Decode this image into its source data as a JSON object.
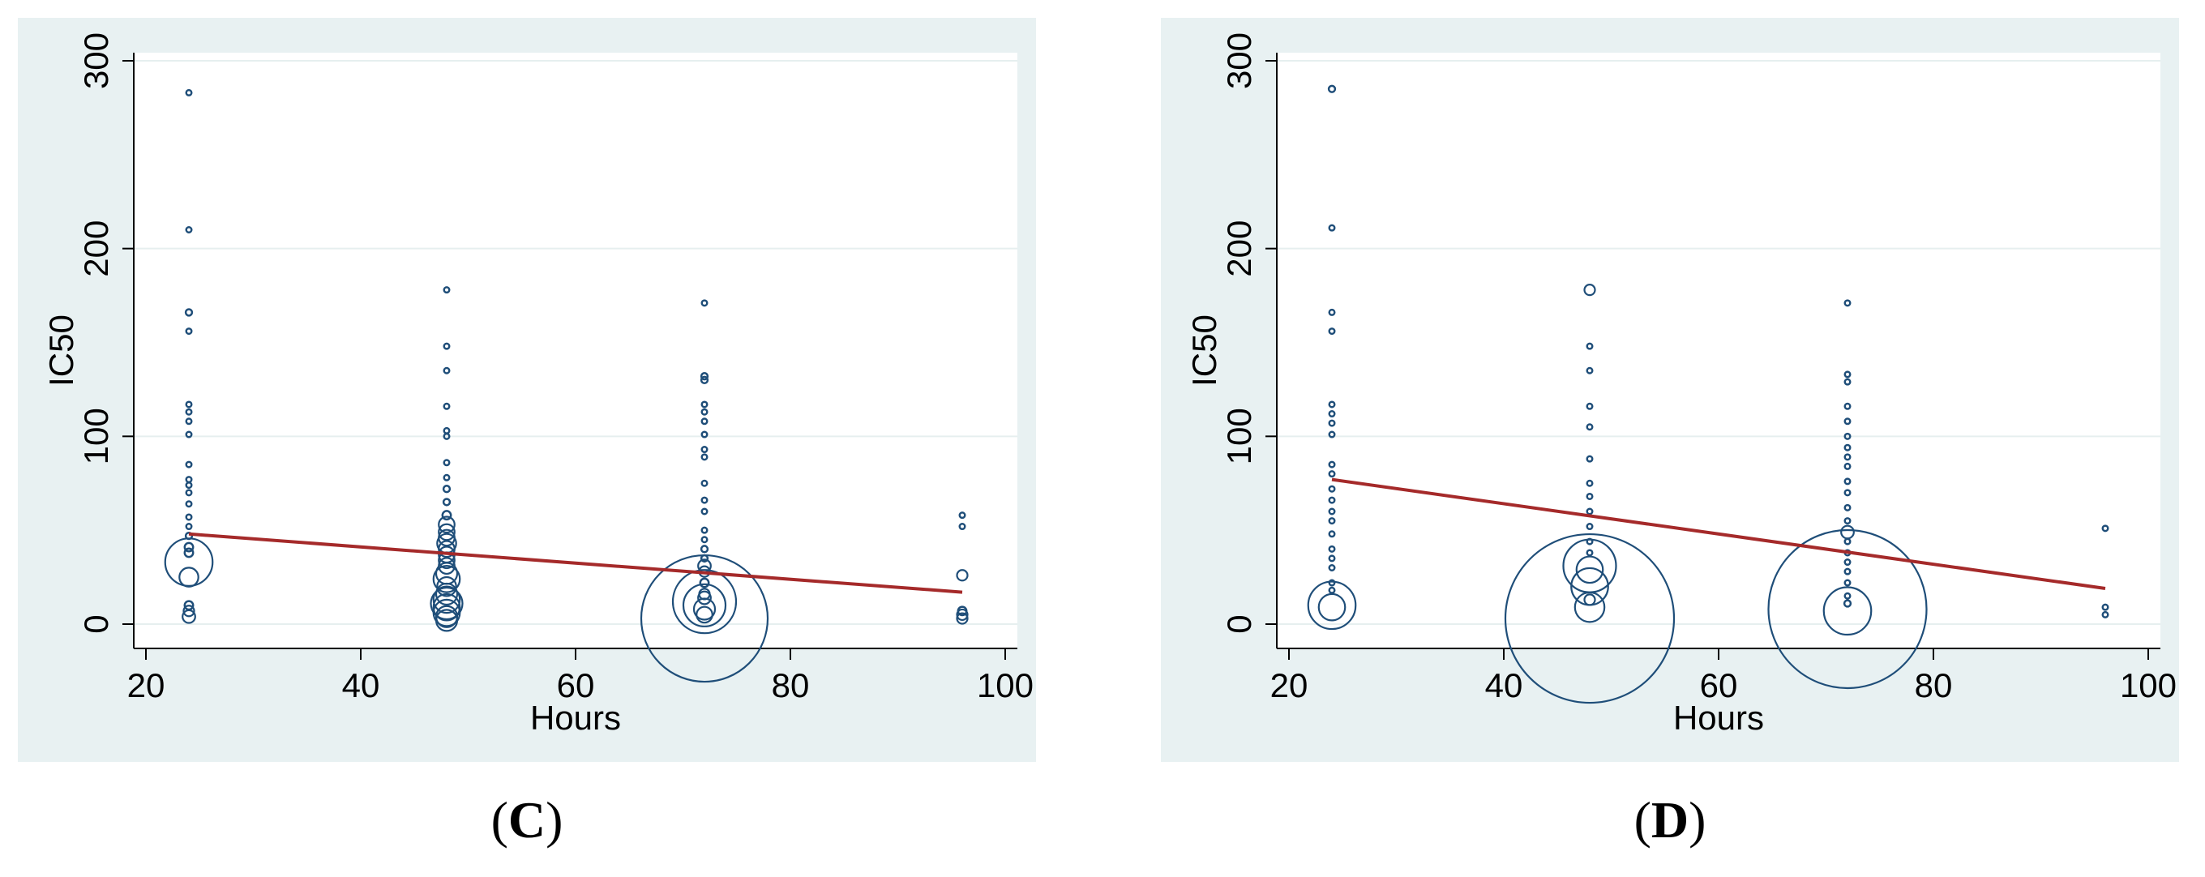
{
  "colors": {
    "outer_background": "#e8f1f2",
    "plot_background": "#ffffff",
    "gridline": "#e6efef",
    "marker": "#1f4e79",
    "fit_line": "#a52a2a"
  },
  "chart_data": [
    {
      "type": "scatter",
      "subtype": "weighted-scatter-with-linear-fit",
      "panel_label": "C",
      "xlabel": "Hours",
      "ylabel": "IC50",
      "xlim": [
        20,
        100
      ],
      "ylim": [
        0,
        300
      ],
      "xticks": [
        20,
        40,
        60,
        80,
        100
      ],
      "yticks": [
        0,
        100,
        200,
        300
      ],
      "grid": true,
      "fit_line": {
        "x": [
          24,
          96
        ],
        "y": [
          48,
          17
        ]
      },
      "points": [
        {
          "x": 24,
          "y": 283,
          "w": 0.5
        },
        {
          "x": 24,
          "y": 210,
          "w": 0.5
        },
        {
          "x": 24,
          "y": 166,
          "w": 0.6
        },
        {
          "x": 24,
          "y": 156,
          "w": 0.5
        },
        {
          "x": 24,
          "y": 117,
          "w": 0.5
        },
        {
          "x": 24,
          "y": 113,
          "w": 0.5
        },
        {
          "x": 24,
          "y": 108,
          "w": 0.5
        },
        {
          "x": 24,
          "y": 101,
          "w": 0.5
        },
        {
          "x": 24,
          "y": 85,
          "w": 0.5
        },
        {
          "x": 24,
          "y": 77,
          "w": 0.5
        },
        {
          "x": 24,
          "y": 74,
          "w": 0.5
        },
        {
          "x": 24,
          "y": 70,
          "w": 0.5
        },
        {
          "x": 24,
          "y": 64,
          "w": 0.5
        },
        {
          "x": 24,
          "y": 57,
          "w": 0.5
        },
        {
          "x": 24,
          "y": 52,
          "w": 0.5
        },
        {
          "x": 24,
          "y": 47,
          "w": 0.6
        },
        {
          "x": 24,
          "y": 41,
          "w": 0.8
        },
        {
          "x": 24,
          "y": 38,
          "w": 0.8
        },
        {
          "x": 24,
          "y": 33,
          "w": 4.5
        },
        {
          "x": 24,
          "y": 25,
          "w": 1.8
        },
        {
          "x": 24,
          "y": 10,
          "w": 0.8
        },
        {
          "x": 24,
          "y": 7,
          "w": 1
        },
        {
          "x": 24,
          "y": 4,
          "w": 1.2
        },
        {
          "x": 48,
          "y": 178,
          "w": 0.5
        },
        {
          "x": 48,
          "y": 148,
          "w": 0.5
        },
        {
          "x": 48,
          "y": 135,
          "w": 0.5
        },
        {
          "x": 48,
          "y": 116,
          "w": 0.5
        },
        {
          "x": 48,
          "y": 103,
          "w": 0.5
        },
        {
          "x": 48,
          "y": 100,
          "w": 0.5
        },
        {
          "x": 48,
          "y": 86,
          "w": 0.5
        },
        {
          "x": 48,
          "y": 78,
          "w": 0.5
        },
        {
          "x": 48,
          "y": 72,
          "w": 0.6
        },
        {
          "x": 48,
          "y": 65,
          "w": 0.6
        },
        {
          "x": 48,
          "y": 58,
          "w": 0.8
        },
        {
          "x": 48,
          "y": 53,
          "w": 1.5
        },
        {
          "x": 48,
          "y": 49,
          "w": 1.5
        },
        {
          "x": 48,
          "y": 46,
          "w": 1.5
        },
        {
          "x": 48,
          "y": 43,
          "w": 1.8
        },
        {
          "x": 48,
          "y": 40,
          "w": 1.5
        },
        {
          "x": 48,
          "y": 37,
          "w": 1.5
        },
        {
          "x": 48,
          "y": 34,
          "w": 1.5
        },
        {
          "x": 48,
          "y": 31,
          "w": 1.5
        },
        {
          "x": 48,
          "y": 27,
          "w": 2
        },
        {
          "x": 48,
          "y": 24,
          "w": 2.5
        },
        {
          "x": 48,
          "y": 20,
          "w": 1.8
        },
        {
          "x": 48,
          "y": 16,
          "w": 2
        },
        {
          "x": 48,
          "y": 13,
          "w": 2.5
        },
        {
          "x": 48,
          "y": 11,
          "w": 3
        },
        {
          "x": 48,
          "y": 9,
          "w": 2.5
        },
        {
          "x": 48,
          "y": 6,
          "w": 2.5
        },
        {
          "x": 48,
          "y": 4,
          "w": 2
        },
        {
          "x": 48,
          "y": 2,
          "w": 2
        },
        {
          "x": 72,
          "y": 171,
          "w": 0.5
        },
        {
          "x": 72,
          "y": 132,
          "w": 0.6
        },
        {
          "x": 72,
          "y": 130,
          "w": 0.6
        },
        {
          "x": 72,
          "y": 117,
          "w": 0.5
        },
        {
          "x": 72,
          "y": 113,
          "w": 0.5
        },
        {
          "x": 72,
          "y": 108,
          "w": 0.5
        },
        {
          "x": 72,
          "y": 101,
          "w": 0.5
        },
        {
          "x": 72,
          "y": 93,
          "w": 0.5
        },
        {
          "x": 72,
          "y": 89,
          "w": 0.5
        },
        {
          "x": 72,
          "y": 75,
          "w": 0.5
        },
        {
          "x": 72,
          "y": 66,
          "w": 0.5
        },
        {
          "x": 72,
          "y": 60,
          "w": 0.5
        },
        {
          "x": 72,
          "y": 50,
          "w": 0.5
        },
        {
          "x": 72,
          "y": 45,
          "w": 0.5
        },
        {
          "x": 72,
          "y": 40,
          "w": 0.6
        },
        {
          "x": 72,
          "y": 35,
          "w": 0.6
        },
        {
          "x": 72,
          "y": 31,
          "w": 1.2
        },
        {
          "x": 72,
          "y": 28,
          "w": 1
        },
        {
          "x": 72,
          "y": 22,
          "w": 0.8
        },
        {
          "x": 72,
          "y": 16,
          "w": 1
        },
        {
          "x": 72,
          "y": 14,
          "w": 1.2
        },
        {
          "x": 72,
          "y": 12,
          "w": 6
        },
        {
          "x": 72,
          "y": 10,
          "w": 4
        },
        {
          "x": 72,
          "y": 8,
          "w": 2
        },
        {
          "x": 72,
          "y": 5,
          "w": 1.5
        },
        {
          "x": 72,
          "y": 3,
          "w": 12
        },
        {
          "x": 96,
          "y": 58,
          "w": 0.5
        },
        {
          "x": 96,
          "y": 52,
          "w": 0.5
        },
        {
          "x": 96,
          "y": 26,
          "w": 1
        },
        {
          "x": 96,
          "y": 7,
          "w": 0.8
        },
        {
          "x": 96,
          "y": 5,
          "w": 1
        },
        {
          "x": 96,
          "y": 3,
          "w": 1
        }
      ]
    },
    {
      "type": "scatter",
      "subtype": "weighted-scatter-with-linear-fit",
      "panel_label": "D",
      "xlabel": "Hours",
      "ylabel": "IC50",
      "xlim": [
        20,
        100
      ],
      "ylim": [
        0,
        300
      ],
      "xticks": [
        20,
        40,
        60,
        80,
        100
      ],
      "yticks": [
        0,
        100,
        200,
        300
      ],
      "grid": true,
      "fit_line": {
        "x": [
          24,
          96
        ],
        "y": [
          77,
          19
        ]
      },
      "points": [
        {
          "x": 24,
          "y": 285,
          "w": 0.6
        },
        {
          "x": 24,
          "y": 211,
          "w": 0.5
        },
        {
          "x": 24,
          "y": 166,
          "w": 0.5
        },
        {
          "x": 24,
          "y": 156,
          "w": 0.5
        },
        {
          "x": 24,
          "y": 117,
          "w": 0.5
        },
        {
          "x": 24,
          "y": 112,
          "w": 0.5
        },
        {
          "x": 24,
          "y": 107,
          "w": 0.5
        },
        {
          "x": 24,
          "y": 101,
          "w": 0.5
        },
        {
          "x": 24,
          "y": 85,
          "w": 0.5
        },
        {
          "x": 24,
          "y": 80,
          "w": 0.5
        },
        {
          "x": 24,
          "y": 72,
          "w": 0.5
        },
        {
          "x": 24,
          "y": 66,
          "w": 0.5
        },
        {
          "x": 24,
          "y": 60,
          "w": 0.5
        },
        {
          "x": 24,
          "y": 55,
          "w": 0.5
        },
        {
          "x": 24,
          "y": 48,
          "w": 0.5
        },
        {
          "x": 24,
          "y": 40,
          "w": 0.5
        },
        {
          "x": 24,
          "y": 35,
          "w": 0.5
        },
        {
          "x": 24,
          "y": 30,
          "w": 0.5
        },
        {
          "x": 24,
          "y": 22,
          "w": 0.5
        },
        {
          "x": 24,
          "y": 18,
          "w": 0.5
        },
        {
          "x": 24,
          "y": 10,
          "w": 4.5
        },
        {
          "x": 24,
          "y": 9,
          "w": 2.5
        },
        {
          "x": 48,
          "y": 178,
          "w": 1
        },
        {
          "x": 48,
          "y": 148,
          "w": 0.5
        },
        {
          "x": 48,
          "y": 135,
          "w": 0.5
        },
        {
          "x": 48,
          "y": 116,
          "w": 0.5
        },
        {
          "x": 48,
          "y": 105,
          "w": 0.5
        },
        {
          "x": 48,
          "y": 88,
          "w": 0.5
        },
        {
          "x": 48,
          "y": 75,
          "w": 0.5
        },
        {
          "x": 48,
          "y": 68,
          "w": 0.5
        },
        {
          "x": 48,
          "y": 60,
          "w": 0.5
        },
        {
          "x": 48,
          "y": 52,
          "w": 0.5
        },
        {
          "x": 48,
          "y": 44,
          "w": 0.5
        },
        {
          "x": 48,
          "y": 38,
          "w": 0.5
        },
        {
          "x": 48,
          "y": 31,
          "w": 5
        },
        {
          "x": 48,
          "y": 29,
          "w": 2.5
        },
        {
          "x": 48,
          "y": 20,
          "w": 3.5
        },
        {
          "x": 48,
          "y": 13,
          "w": 1
        },
        {
          "x": 48,
          "y": 9,
          "w": 2.8
        },
        {
          "x": 48,
          "y": 3,
          "w": 16
        },
        {
          "x": 72,
          "y": 171,
          "w": 0.5
        },
        {
          "x": 72,
          "y": 133,
          "w": 0.5
        },
        {
          "x": 72,
          "y": 129,
          "w": 0.5
        },
        {
          "x": 72,
          "y": 116,
          "w": 0.5
        },
        {
          "x": 72,
          "y": 108,
          "w": 0.5
        },
        {
          "x": 72,
          "y": 100,
          "w": 0.5
        },
        {
          "x": 72,
          "y": 94,
          "w": 0.5
        },
        {
          "x": 72,
          "y": 89,
          "w": 0.5
        },
        {
          "x": 72,
          "y": 84,
          "w": 0.5
        },
        {
          "x": 72,
          "y": 76,
          "w": 0.5
        },
        {
          "x": 72,
          "y": 70,
          "w": 0.5
        },
        {
          "x": 72,
          "y": 62,
          "w": 0.5
        },
        {
          "x": 72,
          "y": 55,
          "w": 0.5
        },
        {
          "x": 72,
          "y": 49,
          "w": 1.2
        },
        {
          "x": 72,
          "y": 44,
          "w": 0.5
        },
        {
          "x": 72,
          "y": 38,
          "w": 0.5
        },
        {
          "x": 72,
          "y": 33,
          "w": 0.5
        },
        {
          "x": 72,
          "y": 28,
          "w": 0.5
        },
        {
          "x": 72,
          "y": 22,
          "w": 0.5
        },
        {
          "x": 72,
          "y": 15,
          "w": 0.5
        },
        {
          "x": 72,
          "y": 11,
          "w": 0.6
        },
        {
          "x": 72,
          "y": 7,
          "w": 4.5
        },
        {
          "x": 72,
          "y": 8,
          "w": 15
        },
        {
          "x": 96,
          "y": 51,
          "w": 0.5
        },
        {
          "x": 96,
          "y": 9,
          "w": 0.5
        },
        {
          "x": 96,
          "y": 5,
          "w": 0.5
        }
      ]
    }
  ]
}
